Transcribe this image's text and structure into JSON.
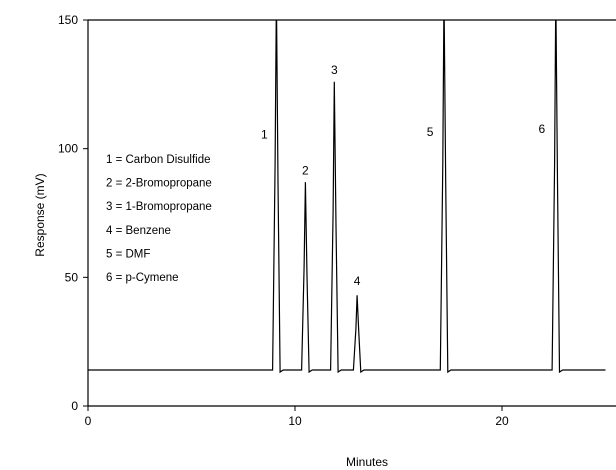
{
  "chart_data": {
    "type": "line",
    "xlabel": "Minutes",
    "ylabel": "Response (mV)",
    "xlim": [
      0,
      25
    ],
    "ylim": [
      0,
      150
    ],
    "x_ticks": [
      0,
      10,
      20
    ],
    "y_ticks": [
      0,
      50,
      100,
      150
    ],
    "grid": false,
    "legend_position": "left",
    "line_color": "#000000",
    "baseline": 14,
    "peaks": [
      {
        "label": "1",
        "x": 9.1,
        "y": 160
      },
      {
        "label": "2",
        "x": 10.5,
        "y": 87
      },
      {
        "label": "3",
        "x": 11.9,
        "y": 126
      },
      {
        "label": "4",
        "x": 13.0,
        "y": 43
      },
      {
        "label": "5",
        "x": 17.2,
        "y": 160
      },
      {
        "label": "6",
        "x": 22.6,
        "y": 160
      }
    ],
    "legend": [
      "1 = Carbon Disulfide",
      "2 = 2-Bromopropane",
      "3 = 1-Bromopropane",
      "4 = Benzene",
      "5 = DMF",
      "6 = p-Cymene"
    ]
  }
}
